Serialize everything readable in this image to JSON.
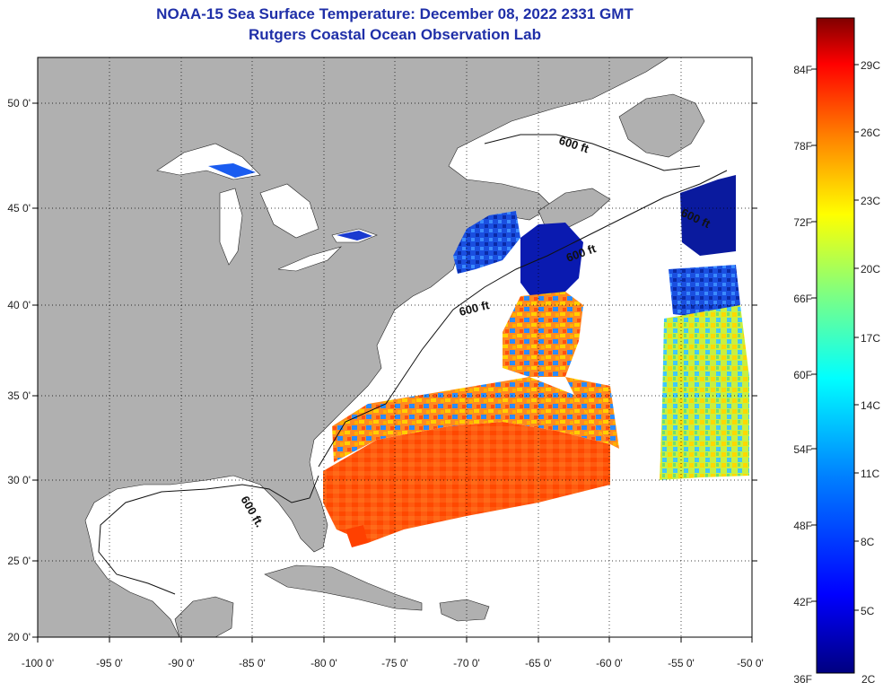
{
  "header": {
    "title": "NOAA-15 Sea Surface Temperature:  December 08, 2022 2331 GMT",
    "subtitle": "Rutgers Coastal Ocean Observation Lab"
  },
  "map": {
    "lon_ticks": [
      "-100 0'",
      "-95 0'",
      "-90 0'",
      "-85 0'",
      "-80 0'",
      "-75 0'",
      "-70 0'",
      "-65 0'",
      "-60 0'",
      "-55 0'",
      "-50 0'"
    ],
    "lat_ticks": [
      "50 0'",
      "45 0'",
      "40 0'",
      "35 0'",
      "30 0'",
      "25 0'",
      "20 0'"
    ],
    "contour_labels": [
      "600 ft",
      "600 ft",
      "600 ft",
      "600 ft",
      "600 ft."
    ],
    "colors": {
      "land": "#b0b0b0",
      "ocean": "#ffffff",
      "frame": "#000000"
    }
  },
  "colorbar": {
    "f_labels": [
      "84F",
      "78F",
      "72F",
      "66F",
      "60F",
      "54F",
      "48F",
      "42F",
      "36F"
    ],
    "c_labels": [
      "29C",
      "26C",
      "23C",
      "20C",
      "17C",
      "14C",
      "11C",
      "8C",
      "5C",
      "2C"
    ],
    "gradient_colors": [
      "#800000",
      "#ff0000",
      "#ff8000",
      "#ffff00",
      "#80ff80",
      "#00ffff",
      "#0080ff",
      "#0000ff",
      "#000080"
    ]
  }
}
